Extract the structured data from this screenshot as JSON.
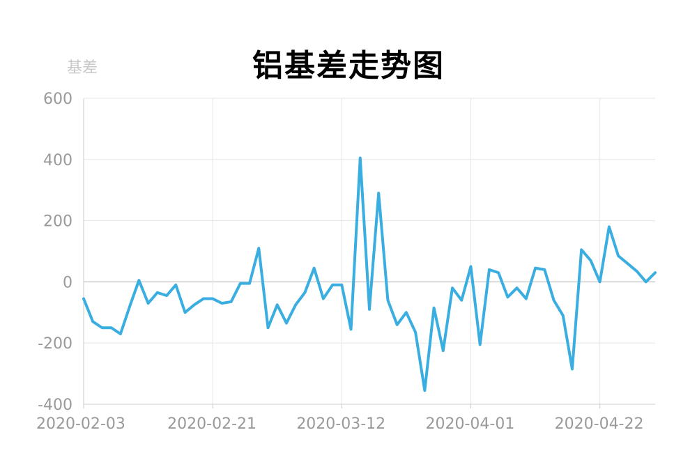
{
  "chart_data": {
    "type": "line",
    "title": "铝基差走势图",
    "ylabel": "基差",
    "xlabel": "",
    "ylim": [
      -400,
      600
    ],
    "yticks": [
      600,
      400,
      200,
      0,
      -200,
      -400
    ],
    "xtick_labels": [
      "2020-02-03",
      "2020-02-21",
      "2020-03-12",
      "2020-04-01",
      "2020-04-22"
    ],
    "grid": true,
    "legend": "none",
    "colors": {
      "line": "#3aaee0",
      "grid": "#e6e6e6",
      "zero_line": "#cccccc",
      "axis": "#cccccc",
      "tick_text": "#999999",
      "axis_name": "#c8c8c8"
    },
    "series": [
      {
        "x": [
          "2020-02-03",
          "2020-02-04",
          "2020-02-05",
          "2020-02-06",
          "2020-02-07",
          "2020-02-10",
          "2020-02-11",
          "2020-02-12",
          "2020-02-13",
          "2020-02-14",
          "2020-02-17",
          "2020-02-18",
          "2020-02-19",
          "2020-02-20",
          "2020-02-21",
          "2020-02-24",
          "2020-02-25",
          "2020-02-26",
          "2020-02-27",
          "2020-02-28",
          "2020-03-02",
          "2020-03-03",
          "2020-03-04",
          "2020-03-05",
          "2020-03-06",
          "2020-03-09",
          "2020-03-10",
          "2020-03-11",
          "2020-03-12",
          "2020-03-13",
          "2020-03-16",
          "2020-03-17",
          "2020-03-18",
          "2020-03-19",
          "2020-03-20",
          "2020-03-23",
          "2020-03-24",
          "2020-03-25",
          "2020-03-26",
          "2020-03-27",
          "2020-03-30",
          "2020-03-31",
          "2020-04-01",
          "2020-04-02",
          "2020-04-03",
          "2020-04-07",
          "2020-04-08",
          "2020-04-09",
          "2020-04-10",
          "2020-04-13",
          "2020-04-14",
          "2020-04-15",
          "2020-04-16",
          "2020-04-17",
          "2020-04-20",
          "2020-04-21",
          "2020-04-22",
          "2020-04-23",
          "2020-04-24",
          "2020-04-27",
          "2020-04-28",
          "2020-04-29",
          "2020-04-30"
        ],
        "values": [
          -55,
          -130,
          -150,
          -150,
          -170,
          -80,
          5,
          -70,
          -35,
          -45,
          -10,
          -100,
          -75,
          -55,
          -55,
          -70,
          -65,
          -5,
          -5,
          110,
          -150,
          -75,
          -135,
          -75,
          -35,
          45,
          -55,
          -10,
          -10,
          -155,
          405,
          -90,
          290,
          -60,
          -140,
          -100,
          -165,
          -355,
          -85,
          -225,
          -20,
          -60,
          50,
          -205,
          40,
          30,
          -50,
          -20,
          -55,
          45,
          40,
          -60,
          -110,
          -285,
          105,
          70,
          0,
          180,
          85,
          60,
          35,
          0,
          30
        ]
      }
    ]
  }
}
